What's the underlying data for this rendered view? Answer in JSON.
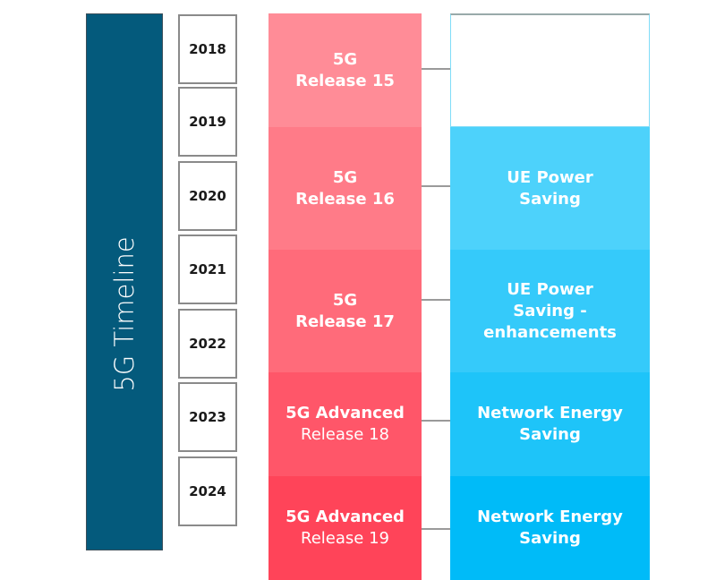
{
  "title": "5G Timeline",
  "years": [
    "2018",
    "2019",
    "2020",
    "2021",
    "2022",
    "2023",
    "2024"
  ],
  "releases": [
    {
      "line1": "5G",
      "line2": "Release 15",
      "color": "#ff8c97"
    },
    {
      "line1": "5G",
      "line2": "Release 16",
      "color": "#ff7b88"
    },
    {
      "line1": "5G",
      "line2": "Release 17",
      "color": "#ff6b7a"
    },
    {
      "line1": "5G Advanced",
      "line2": "Release 18",
      "color": "#ff5669"
    },
    {
      "line1": "5G Advanced",
      "line2": "Release 19",
      "color": "#ff4459"
    }
  ],
  "features": [
    {
      "text": "",
      "color": "#ffffff"
    },
    {
      "text": "UE Power Saving",
      "color": "#4dd2fb"
    },
    {
      "text": "UE Power Saving - enhancements",
      "color": "#35cafa"
    },
    {
      "text": "Network Energy Saving",
      "color": "#1ec4f9"
    },
    {
      "text": "Network Energy Saving",
      "color": "#00bbf8"
    }
  ]
}
